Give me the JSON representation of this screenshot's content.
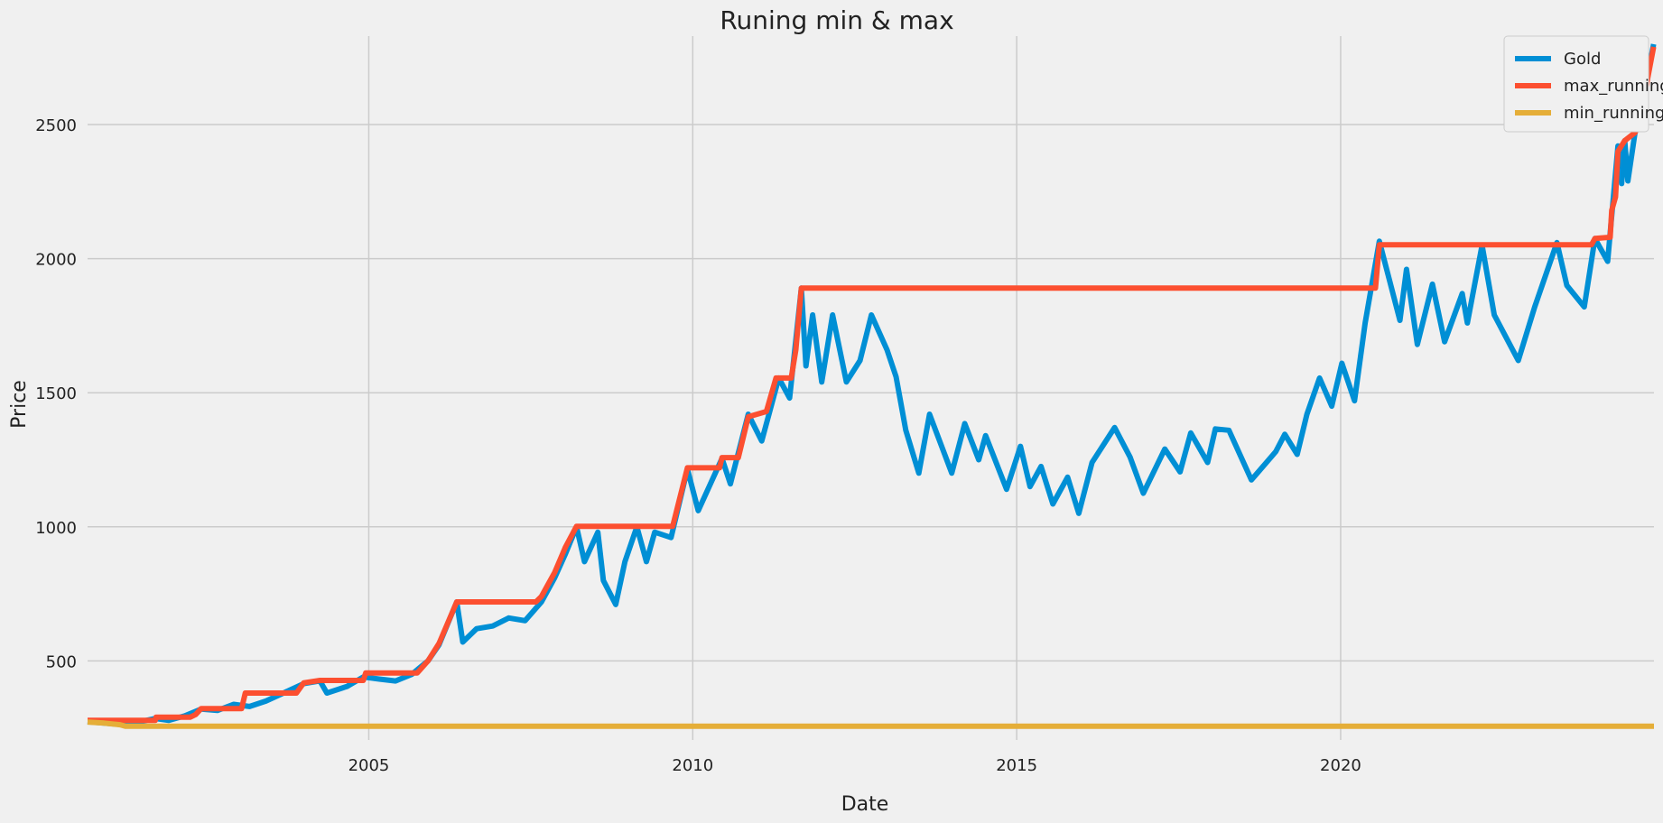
{
  "chart_data": {
    "type": "line",
    "title": "Runing min & max",
    "xlabel": "Date",
    "ylabel": "Price",
    "x_axis_type": "date",
    "xlim": [
      "2000-08-30",
      "2024-11-01"
    ],
    "ylim": [
      205,
      2830
    ],
    "xticks": [
      {
        "date": "2005-01-01",
        "label": "2005"
      },
      {
        "date": "2010-01-01",
        "label": "2010"
      },
      {
        "date": "2015-01-01",
        "label": "2015"
      },
      {
        "date": "2020-01-01",
        "label": "2020"
      }
    ],
    "yticks": [
      500,
      1000,
      1500,
      2000,
      2500
    ],
    "grid": true,
    "legend_position": "top-right",
    "series": [
      {
        "name": "Gold",
        "color": "#008fd5",
        "points": [
          [
            "2000-08-30",
            273
          ],
          [
            "2000-12-01",
            268
          ],
          [
            "2001-03-01",
            263
          ],
          [
            "2001-06-01",
            270
          ],
          [
            "2001-09-15",
            285
          ],
          [
            "2001-12-01",
            278
          ],
          [
            "2002-03-01",
            295
          ],
          [
            "2002-06-01",
            320
          ],
          [
            "2002-09-01",
            315
          ],
          [
            "2002-12-01",
            338
          ],
          [
            "2003-03-01",
            330
          ],
          [
            "2003-06-01",
            350
          ],
          [
            "2003-09-01",
            378
          ],
          [
            "2003-12-31",
            415
          ],
          [
            "2004-04-01",
            425
          ],
          [
            "2004-05-10",
            380
          ],
          [
            "2004-09-01",
            405
          ],
          [
            "2004-12-01",
            440
          ],
          [
            "2005-03-01",
            432
          ],
          [
            "2005-06-01",
            425
          ],
          [
            "2005-09-01",
            450
          ],
          [
            "2005-12-01",
            500
          ],
          [
            "2006-02-01",
            560
          ],
          [
            "2006-05-12",
            720
          ],
          [
            "2006-06-15",
            570
          ],
          [
            "2006-09-01",
            620
          ],
          [
            "2006-12-01",
            630
          ],
          [
            "2007-03-01",
            660
          ],
          [
            "2007-06-01",
            650
          ],
          [
            "2007-09-01",
            720
          ],
          [
            "2007-11-15",
            810
          ],
          [
            "2008-01-15",
            900
          ],
          [
            "2008-03-17",
            1000
          ],
          [
            "2008-05-01",
            870
          ],
          [
            "2008-07-15",
            980
          ],
          [
            "2008-08-15",
            800
          ],
          [
            "2008-10-24",
            710
          ],
          [
            "2008-12-15",
            870
          ],
          [
            "2009-02-20",
            1000
          ],
          [
            "2009-04-15",
            870
          ],
          [
            "2009-06-01",
            980
          ],
          [
            "2009-09-01",
            960
          ],
          [
            "2009-12-02",
            1215
          ],
          [
            "2010-02-01",
            1060
          ],
          [
            "2010-06-15",
            1255
          ],
          [
            "2010-08-01",
            1160
          ],
          [
            "2010-11-10",
            1420
          ],
          [
            "2011-01-25",
            1320
          ],
          [
            "2011-05-01",
            1555
          ],
          [
            "2011-07-01",
            1480
          ],
          [
            "2011-09-05",
            1890
          ],
          [
            "2011-10-01",
            1600
          ],
          [
            "2011-11-08",
            1790
          ],
          [
            "2011-12-29",
            1540
          ],
          [
            "2012-02-28",
            1790
          ],
          [
            "2012-05-16",
            1540
          ],
          [
            "2012-08-01",
            1620
          ],
          [
            "2012-10-04",
            1790
          ],
          [
            "2012-12-31",
            1660
          ],
          [
            "2013-02-20",
            1560
          ],
          [
            "2013-04-16",
            1360
          ],
          [
            "2013-06-28",
            1200
          ],
          [
            "2013-08-28",
            1420
          ],
          [
            "2013-12-31",
            1200
          ],
          [
            "2014-03-14",
            1385
          ],
          [
            "2014-06-01",
            1250
          ],
          [
            "2014-07-10",
            1340
          ],
          [
            "2014-11-05",
            1140
          ],
          [
            "2015-01-22",
            1300
          ],
          [
            "2015-03-17",
            1150
          ],
          [
            "2015-05-18",
            1225
          ],
          [
            "2015-07-24",
            1085
          ],
          [
            "2015-10-15",
            1185
          ],
          [
            "2015-12-17",
            1050
          ],
          [
            "2016-03-01",
            1240
          ],
          [
            "2016-07-06",
            1370
          ],
          [
            "2016-10-01",
            1260
          ],
          [
            "2016-12-15",
            1125
          ],
          [
            "2017-04-15",
            1290
          ],
          [
            "2017-07-10",
            1205
          ],
          [
            "2017-09-08",
            1350
          ],
          [
            "2017-12-12",
            1240
          ],
          [
            "2018-01-25",
            1365
          ],
          [
            "2018-04-11",
            1360
          ],
          [
            "2018-08-16",
            1175
          ],
          [
            "2018-12-31",
            1280
          ],
          [
            "2019-02-20",
            1345
          ],
          [
            "2019-05-01",
            1270
          ],
          [
            "2019-06-25",
            1420
          ],
          [
            "2019-09-04",
            1555
          ],
          [
            "2019-11-12",
            1450
          ],
          [
            "2020-01-08",
            1610
          ],
          [
            "2020-03-19",
            1470
          ],
          [
            "2020-05-18",
            1760
          ],
          [
            "2020-08-06",
            2065
          ],
          [
            "2020-11-30",
            1770
          ],
          [
            "2021-01-06",
            1960
          ],
          [
            "2021-03-08",
            1680
          ],
          [
            "2021-06-01",
            1905
          ],
          [
            "2021-08-09",
            1690
          ],
          [
            "2021-11-16",
            1870
          ],
          [
            "2021-12-15",
            1760
          ],
          [
            "2022-03-08",
            2050
          ],
          [
            "2022-05-16",
            1790
          ],
          [
            "2022-09-28",
            1620
          ],
          [
            "2022-12-30",
            1820
          ],
          [
            "2023-05-04",
            2060
          ],
          [
            "2023-06-29",
            1900
          ],
          [
            "2023-10-05",
            1820
          ],
          [
            "2023-12-04",
            2075
          ],
          [
            "2024-02-14",
            1990
          ],
          [
            "2024-04-12",
            2420
          ],
          [
            "2024-05-03",
            2280
          ],
          [
            "2024-05-20",
            2440
          ],
          [
            "2024-06-07",
            2290
          ],
          [
            "2024-07-17",
            2470
          ],
          [
            "2024-08-20",
            2515
          ],
          [
            "2024-09-26",
            2680
          ],
          [
            "2024-10-30",
            2800
          ]
        ]
      },
      {
        "name": "max_running",
        "color": "#fc4f30",
        "points": [
          [
            "2000-08-30",
            278
          ],
          [
            "2001-09-15",
            278
          ],
          [
            "2001-09-20",
            290
          ],
          [
            "2002-04-01",
            290
          ],
          [
            "2002-05-01",
            300
          ],
          [
            "2002-06-01",
            322
          ],
          [
            "2003-01-15",
            322
          ],
          [
            "2003-02-05",
            380
          ],
          [
            "2003-11-20",
            380
          ],
          [
            "2003-12-31",
            418
          ],
          [
            "2004-04-01",
            427
          ],
          [
            "2004-12-01",
            427
          ],
          [
            "2004-12-15",
            455
          ],
          [
            "2005-10-01",
            455
          ],
          [
            "2005-12-01",
            500
          ],
          [
            "2006-02-01",
            565
          ],
          [
            "2006-05-12",
            720
          ],
          [
            "2007-08-01",
            720
          ],
          [
            "2007-09-01",
            740
          ],
          [
            "2007-11-15",
            830
          ],
          [
            "2008-01-15",
            925
          ],
          [
            "2008-03-17",
            1002
          ],
          [
            "2009-09-10",
            1002
          ],
          [
            "2009-12-02",
            1220
          ],
          [
            "2010-06-01",
            1220
          ],
          [
            "2010-06-15",
            1258
          ],
          [
            "2010-09-15",
            1258
          ],
          [
            "2010-11-10",
            1410
          ],
          [
            "2011-02-20",
            1430
          ],
          [
            "2011-04-15",
            1555
          ],
          [
            "2011-07-10",
            1555
          ],
          [
            "2011-08-05",
            1660
          ],
          [
            "2011-09-05",
            1890
          ],
          [
            "2020-07-15",
            1890
          ],
          [
            "2020-08-06",
            2052
          ],
          [
            "2023-11-15",
            2052
          ],
          [
            "2023-12-04",
            2075
          ],
          [
            "2024-02-28",
            2080
          ],
          [
            "2024-03-08",
            2180
          ],
          [
            "2024-03-29",
            2230
          ],
          [
            "2024-04-12",
            2400
          ],
          [
            "2024-05-20",
            2440
          ],
          [
            "2024-07-17",
            2470
          ],
          [
            "2024-08-20",
            2520
          ],
          [
            "2024-09-26",
            2670
          ],
          [
            "2024-10-30",
            2790
          ]
        ]
      },
      {
        "name": "min_running",
        "color": "#e5ae38",
        "points": [
          [
            "2000-08-30",
            272
          ],
          [
            "2000-12-01",
            268
          ],
          [
            "2001-03-01",
            262
          ],
          [
            "2001-04-02",
            256
          ],
          [
            "2024-11-01",
            256
          ]
        ]
      }
    ]
  }
}
